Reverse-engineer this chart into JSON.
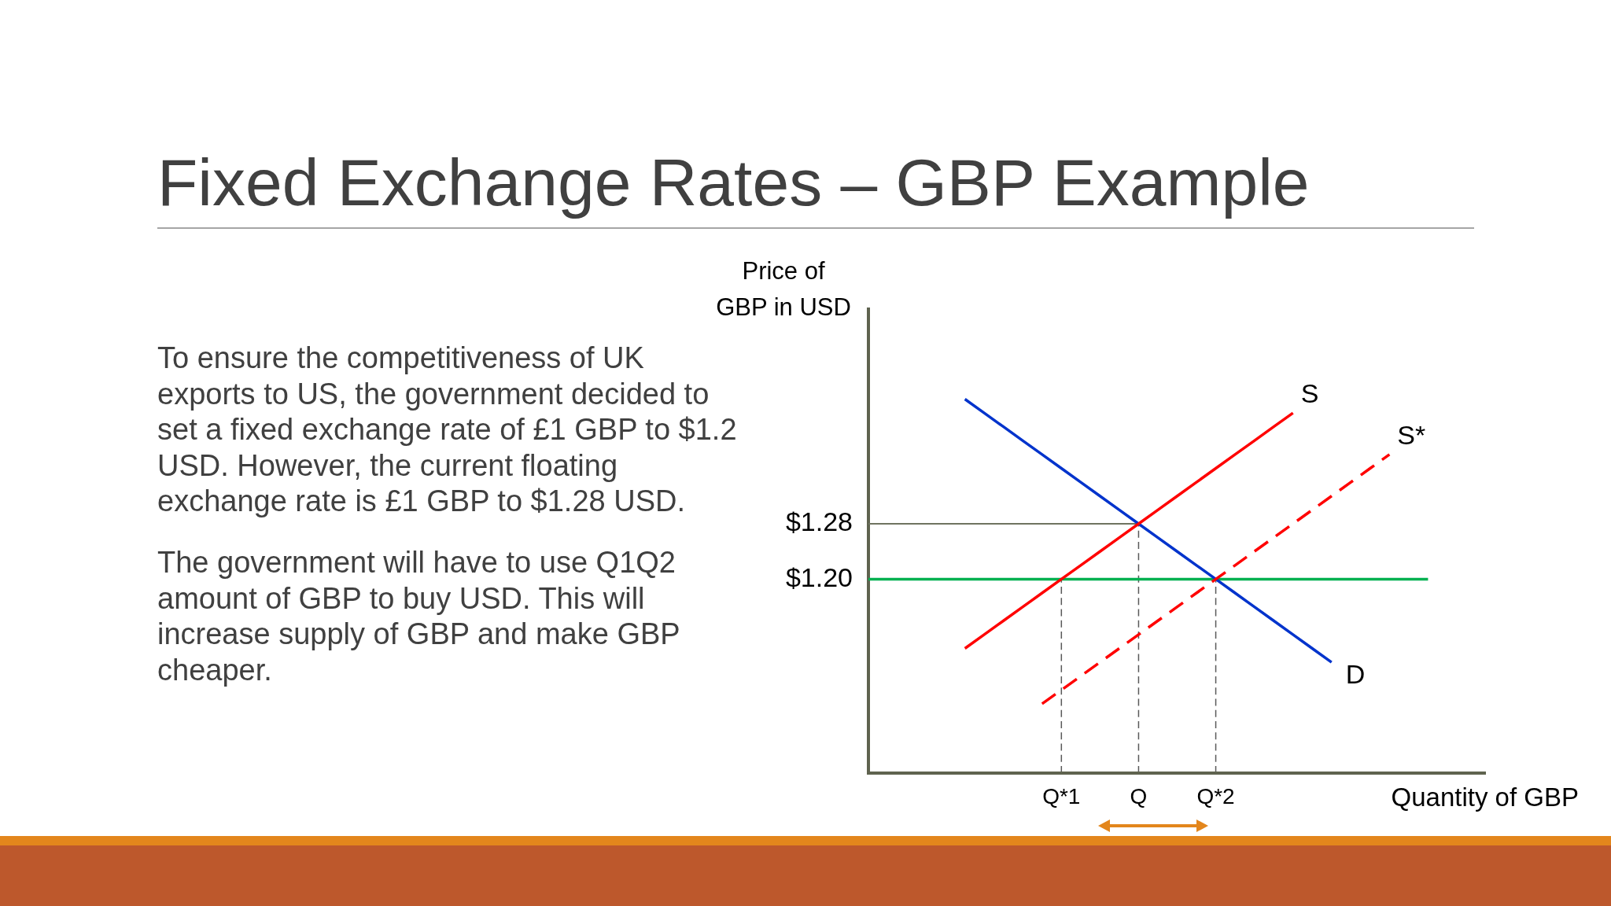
{
  "chart_data": {
    "type": "line",
    "title": "Fixed Exchange Rates – GBP Example",
    "xlabel": "Quantity of GBP",
    "ylabel": "Price of GBP in USD",
    "annotations": [
      "To ensure the competitiveness of UK exports to US, the government decided to set a fixed exchange rate of £1 GBP to $1.2 USD. However, the current floating exchange rate is £1 GBP to $1.28 USD.",
      "The government will have to use Q1Q2 amount of GBP to buy USD. This will increase supply of GBP and make GBP cheaper."
    ],
    "categories": [
      null,
      null,
      null,
      null,
      null,
      null,
      null,
      null,
      null,
      null,
      "Q*1",
      null,
      null,
      null,
      "Q",
      null,
      null,
      null,
      "Q*2",
      null,
      null,
      null,
      null,
      null,
      null,
      null,
      null,
      null,
      null,
      null,
      null,
      null,
      null
    ],
    "ylim": [
      0.92,
      1.59
    ],
    "yticks": [
      {
        "value": 1.2,
        "label": "$1.20"
      },
      {
        "value": 1.28,
        "label": "$1.28"
      }
    ],
    "grid": false,
    "legend": false,
    "marker": "none",
    "series": [
      {
        "name": "S",
        "color": "#ff0000",
        "values": [
          null,
          null,
          null,
          null,
          null,
          1.1,
          1.12,
          1.14,
          1.16,
          1.18,
          1.2,
          1.22,
          1.24,
          1.26,
          1.28,
          1.3,
          1.32,
          1.34,
          1.36,
          1.38,
          1.4,
          1.42,
          1.44,
          null,
          null,
          null,
          null,
          null,
          null,
          null,
          null,
          null,
          null
        ]
      },
      {
        "name": "S*",
        "color": "#ff0000",
        "line_style": "dashed",
        "values": [
          null,
          null,
          null,
          null,
          null,
          null,
          null,
          null,
          null,
          1.02,
          1.04,
          1.06,
          1.08,
          1.1,
          1.12,
          1.14,
          1.16,
          1.18,
          1.2,
          1.22,
          1.24,
          1.26,
          1.28,
          1.3,
          1.32,
          1.34,
          1.36,
          1.38,
          null,
          null,
          null,
          null,
          null
        ]
      },
      {
        "name": "D",
        "color": "#0033cc",
        "values": [
          null,
          null,
          null,
          null,
          null,
          1.46,
          1.44,
          1.42,
          1.4,
          1.38,
          1.36,
          1.34,
          1.32,
          1.3,
          1.28,
          1.26,
          1.24,
          1.22,
          1.2,
          1.18,
          1.16,
          1.14,
          1.12,
          1.1,
          1.08,
          null,
          null,
          null,
          null,
          null,
          null,
          null,
          null
        ]
      },
      {
        "color": "#00b050",
        "values": [
          1.2,
          1.2,
          1.2,
          1.2,
          1.2,
          1.2,
          1.2,
          1.2,
          1.2,
          1.2,
          1.2,
          1.2,
          1.2,
          1.2,
          1.2,
          1.2,
          1.2,
          1.2,
          1.2,
          1.2,
          1.2,
          1.2,
          1.2,
          1.2,
          1.2,
          1.2,
          1.2,
          1.2,
          1.2,
          1.2,
          null,
          null,
          null
        ]
      },
      {
        "color": "#6f7360",
        "values": [
          1.28,
          1.28,
          1.28,
          1.28,
          1.28,
          1.28,
          1.28,
          1.28,
          1.28,
          1.28,
          1.28,
          1.28,
          1.28,
          1.28,
          1.28,
          null,
          null,
          null,
          null,
          null,
          null,
          null,
          null,
          null,
          null,
          null,
          null,
          null,
          null,
          null,
          null,
          null,
          null
        ]
      },
      {
        "color": "#595959",
        "line_style": "dashed",
        "x": [
          "Q*1",
          "Q*1"
        ],
        "values": [
          0.92,
          1.2
        ]
      },
      {
        "color": "#595959",
        "line_style": "dashed",
        "x": [
          "Q",
          "Q"
        ],
        "values": [
          0.92,
          1.28
        ]
      },
      {
        "color": "#595959",
        "line_style": "dashed",
        "x": [
          "Q*2",
          "Q*2"
        ],
        "values": [
          0.92,
          1.2
        ]
      }
    ]
  }
}
